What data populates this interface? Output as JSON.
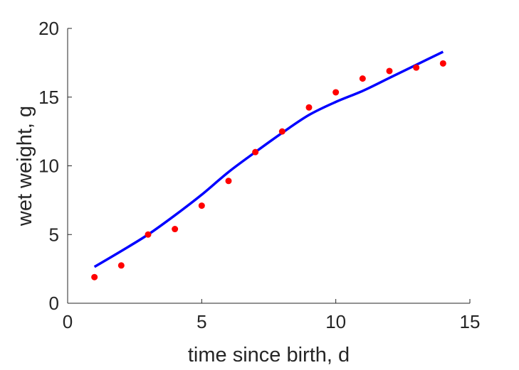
{
  "chart_data": {
    "type": "scatter",
    "title": "",
    "xlabel": "time since birth, d",
    "ylabel": "wet weight, g",
    "xlim": [
      0,
      15
    ],
    "ylim": [
      0,
      20
    ],
    "xticks": [
      0,
      5,
      10,
      15
    ],
    "yticks": [
      0,
      5,
      10,
      15,
      20
    ],
    "grid": false,
    "series": [
      {
        "kind": "points",
        "color": "#ff0000",
        "x": [
          1,
          2,
          3,
          4,
          5,
          6,
          7,
          8,
          9,
          10,
          11,
          12,
          13,
          14
        ],
        "y": [
          1.9,
          2.75,
          5.0,
          5.4,
          7.1,
          8.9,
          11.0,
          12.5,
          14.25,
          15.35,
          16.35,
          16.9,
          17.15,
          17.45
        ]
      },
      {
        "kind": "line",
        "color": "#0000ff",
        "x": [
          1,
          2,
          3,
          4,
          5,
          6,
          7,
          8,
          9,
          10,
          11,
          12,
          13,
          14
        ],
        "y": [
          2.65,
          3.8,
          5.0,
          6.4,
          7.9,
          9.55,
          11.0,
          12.4,
          13.7,
          14.65,
          15.45,
          16.4,
          17.35,
          18.3
        ]
      }
    ]
  }
}
